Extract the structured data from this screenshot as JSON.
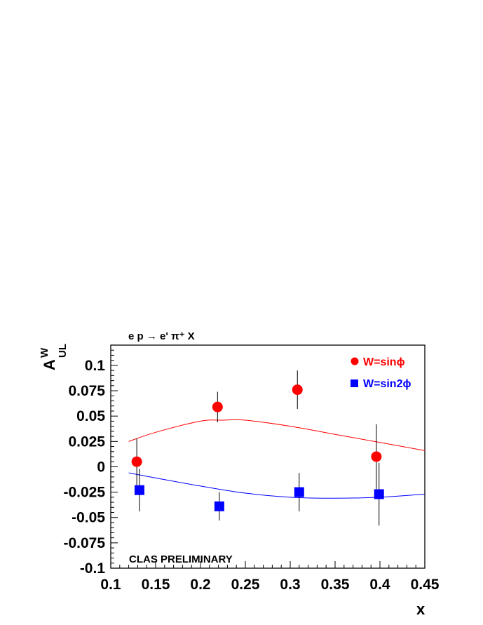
{
  "chart_data": {
    "type": "scatter",
    "title": "e p → e' π⁺ X",
    "xlabel": "x",
    "ylabel_main": "A",
    "ylabel_sup": "W",
    "ylabel_sub": "UL",
    "xlim": [
      0.1,
      0.45
    ],
    "ylim": [
      -0.1,
      0.12
    ],
    "x_ticks": [
      "0.1",
      "0.15",
      "0.2",
      "0.25",
      "0.3",
      "0.35",
      "0.4",
      "0.45"
    ],
    "y_ticks": [
      "-0.1",
      "-0.075",
      "-0.05",
      "-0.025",
      "0",
      "0.025",
      "0.05",
      "0.075",
      "0.1"
    ],
    "annotation": "CLAS PRELIMINARY",
    "series": [
      {
        "name": "W=sinϕ",
        "color": "#ff0000",
        "marker": "circle",
        "points": [
          {
            "x": 0.129,
            "y": 0.005,
            "err": 0.023
          },
          {
            "x": 0.219,
            "y": 0.059,
            "err": 0.015
          },
          {
            "x": 0.308,
            "y": 0.076,
            "err": 0.019
          },
          {
            "x": 0.396,
            "y": 0.01,
            "err": 0.032
          }
        ],
        "curve": [
          [
            0.12,
            0.025
          ],
          [
            0.15,
            0.034
          ],
          [
            0.2,
            0.045
          ],
          [
            0.225,
            0.046
          ],
          [
            0.25,
            0.046
          ],
          [
            0.3,
            0.04
          ],
          [
            0.35,
            0.032
          ],
          [
            0.4,
            0.024
          ],
          [
            0.45,
            0.016
          ]
        ]
      },
      {
        "name": "W=sin2ϕ",
        "color": "#0000ff",
        "marker": "square",
        "points": [
          {
            "x": 0.132,
            "y": -0.023,
            "err": 0.021
          },
          {
            "x": 0.221,
            "y": -0.039,
            "err": 0.014
          },
          {
            "x": 0.31,
            "y": -0.025,
            "err": 0.019
          },
          {
            "x": 0.399,
            "y": -0.027,
            "err": 0.031
          }
        ],
        "curve": [
          [
            0.12,
            -0.006
          ],
          [
            0.15,
            -0.011
          ],
          [
            0.2,
            -0.019
          ],
          [
            0.25,
            -0.026
          ],
          [
            0.3,
            -0.03
          ],
          [
            0.35,
            -0.031
          ],
          [
            0.4,
            -0.03
          ],
          [
            0.45,
            -0.027
          ]
        ]
      }
    ]
  }
}
